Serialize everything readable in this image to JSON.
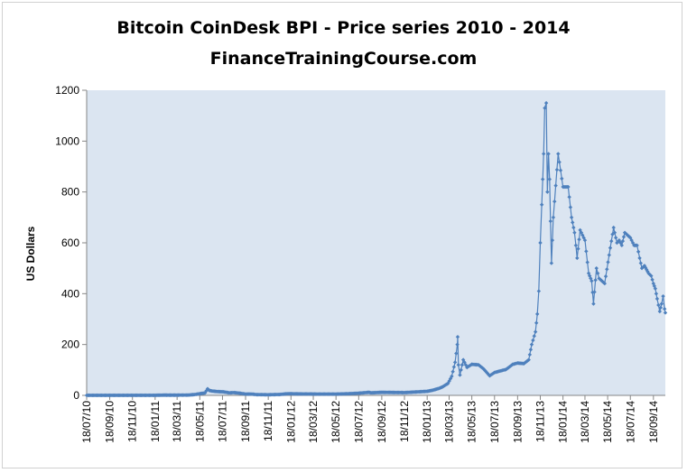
{
  "chart_data": {
    "type": "line",
    "title": "Bitcoin CoinDesk BPI - Price series 2010 - 2014",
    "subtitle": "FinanceTrainingCourse.com",
    "xlabel": "",
    "ylabel": "US Dollars",
    "ylim": [
      0,
      1200
    ],
    "yticks": [
      0,
      200,
      400,
      600,
      800,
      1000,
      1200
    ],
    "xlim": [
      "2010-07-18",
      "2014-10-20"
    ],
    "xtick_labels": [
      "18/07/10",
      "18/09/10",
      "18/11/10",
      "18/01/11",
      "18/03/11",
      "18/05/11",
      "18/07/11",
      "18/09/11",
      "18/11/11",
      "18/01/12",
      "18/03/12",
      "18/05/12",
      "18/07/12",
      "18/09/12",
      "18/11/12",
      "18/01/13",
      "18/03/13",
      "18/05/13",
      "18/07/13",
      "18/09/13",
      "18/11/13",
      "18/01/14",
      "18/03/14",
      "18/05/14",
      "18/07/14",
      "18/09/14"
    ],
    "grid": false,
    "background": "#dbe5f1",
    "series_color": "#4f81bd",
    "series": [
      {
        "values": [
          [
            "2010-07-18",
            0.09
          ],
          [
            "2010-08-18",
            0.07
          ],
          [
            "2010-09-18",
            0.06
          ],
          [
            "2010-10-18",
            0.1
          ],
          [
            "2010-11-18",
            0.27
          ],
          [
            "2010-12-18",
            0.24
          ],
          [
            "2011-01-18",
            0.35
          ],
          [
            "2011-02-10",
            1.0
          ],
          [
            "2011-02-18",
            0.9
          ],
          [
            "2011-03-18",
            0.85
          ],
          [
            "2011-04-18",
            1.3
          ],
          [
            "2011-05-05",
            3.4
          ],
          [
            "2011-05-18",
            6.5
          ],
          [
            "2011-06-01",
            9.5
          ],
          [
            "2011-06-08",
            26
          ],
          [
            "2011-06-12",
            20
          ],
          [
            "2011-06-20",
            17
          ],
          [
            "2011-07-05",
            15
          ],
          [
            "2011-07-20",
            14
          ],
          [
            "2011-08-05",
            10
          ],
          [
            "2011-08-18",
            11
          ],
          [
            "2011-09-05",
            8
          ],
          [
            "2011-09-18",
            5
          ],
          [
            "2011-10-05",
            5
          ],
          [
            "2011-10-18",
            3
          ],
          [
            "2011-11-18",
            2.5
          ],
          [
            "2011-12-18",
            3.5
          ],
          [
            "2012-01-10",
            6.5
          ],
          [
            "2012-02-05",
            5.8
          ],
          [
            "2012-03-18",
            5.3
          ],
          [
            "2012-05-18",
            5.1
          ],
          [
            "2012-06-18",
            6.3
          ],
          [
            "2012-07-18",
            8.5
          ],
          [
            "2012-08-15",
            12
          ],
          [
            "2012-08-20",
            10
          ],
          [
            "2012-09-18",
            12
          ],
          [
            "2012-10-18",
            11.5
          ],
          [
            "2012-11-18",
            11
          ],
          [
            "2012-12-18",
            13.3
          ],
          [
            "2013-01-18",
            16
          ],
          [
            "2013-02-01",
            20
          ],
          [
            "2013-02-18",
            27
          ],
          [
            "2013-03-01",
            34
          ],
          [
            "2013-03-15",
            47
          ],
          [
            "2013-03-25",
            75
          ],
          [
            "2013-04-03",
            130
          ],
          [
            "2013-04-09",
            200
          ],
          [
            "2013-04-10",
            230
          ],
          [
            "2013-04-12",
            120
          ],
          [
            "2013-04-16",
            80
          ],
          [
            "2013-04-25",
            140
          ],
          [
            "2013-05-05",
            110
          ],
          [
            "2013-05-18",
            122
          ],
          [
            "2013-06-05",
            120
          ],
          [
            "2013-06-18",
            105
          ],
          [
            "2013-07-05",
            77
          ],
          [
            "2013-07-18",
            90
          ],
          [
            "2013-08-05",
            97
          ],
          [
            "2013-08-18",
            102
          ],
          [
            "2013-09-05",
            122
          ],
          [
            "2013-09-18",
            127
          ],
          [
            "2013-10-05",
            125
          ],
          [
            "2013-10-18",
            140
          ],
          [
            "2013-10-26",
            200
          ],
          [
            "2013-11-05",
            250
          ],
          [
            "2013-11-10",
            320
          ],
          [
            "2013-11-14",
            410
          ],
          [
            "2013-11-18",
            600
          ],
          [
            "2013-11-22",
            750
          ],
          [
            "2013-11-27",
            950
          ],
          [
            "2013-11-30",
            1130
          ],
          [
            "2013-12-04",
            1150
          ],
          [
            "2013-12-07",
            800
          ],
          [
            "2013-12-10",
            950
          ],
          [
            "2013-12-13",
            850
          ],
          [
            "2013-12-18",
            520
          ],
          [
            "2013-12-23",
            700
          ],
          [
            "2014-01-05",
            950
          ],
          [
            "2014-01-18",
            820
          ],
          [
            "2014-02-01",
            820
          ],
          [
            "2014-02-10",
            700
          ],
          [
            "2014-02-18",
            640
          ],
          [
            "2014-02-25",
            540
          ],
          [
            "2014-03-05",
            650
          ],
          [
            "2014-03-18",
            610
          ],
          [
            "2014-03-28",
            480
          ],
          [
            "2014-04-05",
            450
          ],
          [
            "2014-04-10",
            360
          ],
          [
            "2014-04-18",
            500
          ],
          [
            "2014-04-25",
            460
          ],
          [
            "2014-05-10",
            440
          ],
          [
            "2014-05-25",
            580
          ],
          [
            "2014-06-03",
            660
          ],
          [
            "2014-06-12",
            600
          ],
          [
            "2014-06-18",
            610
          ],
          [
            "2014-06-25",
            590
          ],
          [
            "2014-07-03",
            640
          ],
          [
            "2014-07-18",
            620
          ],
          [
            "2014-07-28",
            590
          ],
          [
            "2014-08-05",
            590
          ],
          [
            "2014-08-12",
            540
          ],
          [
            "2014-08-18",
            500
          ],
          [
            "2014-08-25",
            510
          ],
          [
            "2014-09-05",
            480
          ],
          [
            "2014-09-12",
            470
          ],
          [
            "2014-09-18",
            440
          ],
          [
            "2014-09-23",
            420
          ],
          [
            "2014-09-28",
            380
          ],
          [
            "2014-10-05",
            330
          ],
          [
            "2014-10-10",
            360
          ],
          [
            "2014-10-14",
            390
          ],
          [
            "2014-10-18",
            340
          ],
          [
            "2014-10-20",
            325
          ]
        ]
      }
    ]
  }
}
